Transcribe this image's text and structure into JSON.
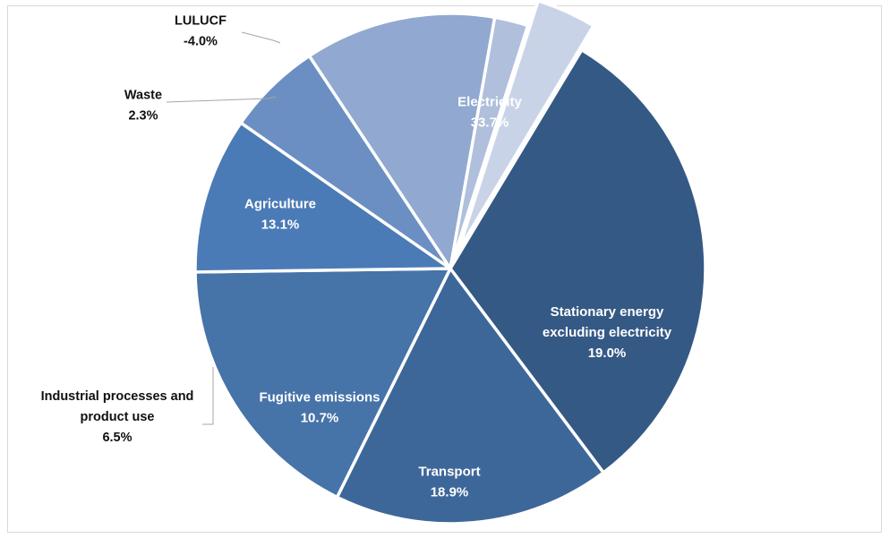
{
  "chart_data": {
    "type": "pie",
    "title": "",
    "slices": [
      {
        "name": "Electricity",
        "value": 33.7,
        "label_lines": [
          "Electricity",
          "33.7%"
        ],
        "color": "#355985",
        "label_inside": true
      },
      {
        "name": "Stationary energy excluding electricity",
        "value": 19.0,
        "label_lines": [
          "Stationary energy",
          "excluding electricity",
          "19.0%"
        ],
        "color": "#3e6799",
        "label_inside": true
      },
      {
        "name": "Transport",
        "value": 18.9,
        "label_lines": [
          "Transport",
          "18.9%"
        ],
        "color": "#4673a8",
        "label_inside": true
      },
      {
        "name": "Fugitive emissions",
        "value": 10.7,
        "label_lines": [
          "Fugitive emissions",
          "10.7%"
        ],
        "color": "#4b7bb6",
        "label_inside": true
      },
      {
        "name": "Industrial processes and product use",
        "value": 6.5,
        "label_lines": [
          "Industrial processes and",
          "product use",
          "6.5%"
        ],
        "color": "#6b8fc3",
        "label_inside": false
      },
      {
        "name": "Agriculture",
        "value": 13.1,
        "label_lines": [
          "Agriculture",
          "13.1%"
        ],
        "color": "#91a8d0",
        "label_inside": true
      },
      {
        "name": "Waste",
        "value": 2.3,
        "label_lines": [
          "Waste",
          "2.3%"
        ],
        "color": "#afbfdc",
        "label_inside": false
      },
      {
        "name": "LULUCF",
        "value": -4.0,
        "label_lines": [
          "LULUCF",
          "-4.0%"
        ],
        "color": "#c9d3e8",
        "label_inside": false,
        "exploded": true
      }
    ],
    "legend": "none"
  }
}
